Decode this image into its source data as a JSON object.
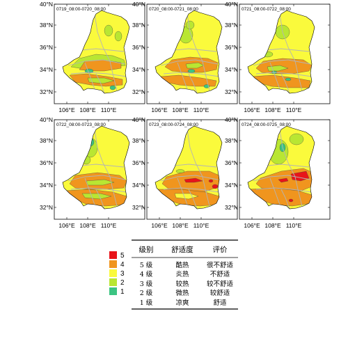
{
  "colors": {
    "level5": "#e8141a",
    "level4": "#f0951e",
    "level3": "#fafa3c",
    "level2": "#b9e632",
    "level1": "#3cc482",
    "boundary": "#b4b4b4",
    "outline": "#000000"
  },
  "axes": {
    "lat_ticks": [
      "32°N",
      "34°N",
      "36°N",
      "38°N",
      "40°N"
    ],
    "lon_ticks": [
      "106°E",
      "108°E",
      "110°E"
    ]
  },
  "panels": [
    {
      "label": "0719_08:00-0720_08:00"
    },
    {
      "label": "0720_08:00-0721_08:00"
    },
    {
      "label": "0721_08:00-0722_08:00"
    },
    {
      "label": "0722_08:00-0723_08:00"
    },
    {
      "label": "0723_08:00-0724_08:00"
    },
    {
      "label": "0724_08:00-0725_08:00"
    }
  ],
  "legend": {
    "levels": [
      {
        "value": "5",
        "color": "#e8141a"
      },
      {
        "value": "4",
        "color": "#f0951e"
      },
      {
        "value": "3",
        "color": "#fafa3c"
      },
      {
        "value": "2",
        "color": "#b9e632"
      },
      {
        "value": "1",
        "color": "#3cc482"
      }
    ]
  },
  "table": {
    "headers": [
      "级别",
      "舒适度",
      "评价"
    ],
    "rows": [
      [
        "5 级",
        "酷热",
        "很不舒适"
      ],
      [
        "4 级",
        "炎热",
        "不舒适"
      ],
      [
        "3 级",
        "较热",
        "较不舒适"
      ],
      [
        "2 级",
        "微热",
        "较舒适"
      ],
      [
        "1 级",
        "凉爽",
        "舒适"
      ]
    ]
  }
}
